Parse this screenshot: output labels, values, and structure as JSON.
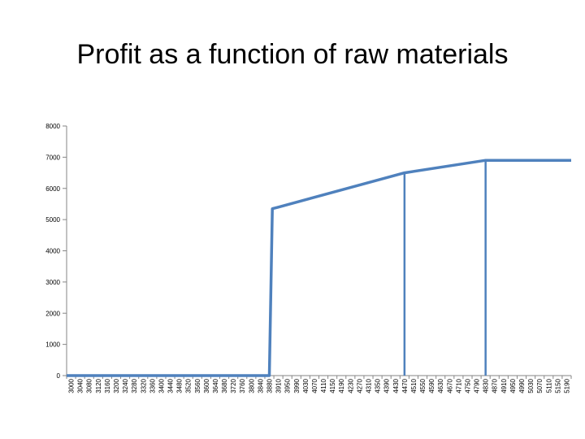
{
  "chart_data": {
    "type": "line",
    "title": "Profit as a function of raw materials",
    "xlabel": "",
    "ylabel": "",
    "ylim": [
      0,
      8000
    ],
    "yticks": [
      0,
      1000,
      2000,
      3000,
      4000,
      5000,
      6000,
      7000,
      8000
    ],
    "xticks": [
      3000,
      3040,
      3080,
      3120,
      3160,
      3200,
      3240,
      3280,
      3320,
      3360,
      3400,
      3440,
      3480,
      3520,
      3560,
      3600,
      3640,
      3680,
      3720,
      3760,
      3800,
      3840,
      3880,
      3910,
      3950,
      3990,
      4030,
      4070,
      4110,
      4150,
      4190,
      4230,
      4270,
      4310,
      4350,
      4390,
      4430,
      4470,
      4510,
      4550,
      4590,
      4630,
      4670,
      4710,
      4750,
      4790,
      4830,
      4870,
      4910,
      4950,
      4990,
      5030,
      5070,
      5110,
      5150,
      5190
    ],
    "grid": false,
    "legend": "none",
    "line_color": "#4f81bd",
    "series": [
      {
        "x": [
          3000,
          3880,
          3890,
          3910,
          4470,
          4830,
          5190
        ],
        "y": [
          0,
          0,
          5350,
          5400,
          6500,
          6900,
          6900
        ]
      }
    ],
    "drop_lines_x": [
      4470,
      4830
    ]
  }
}
